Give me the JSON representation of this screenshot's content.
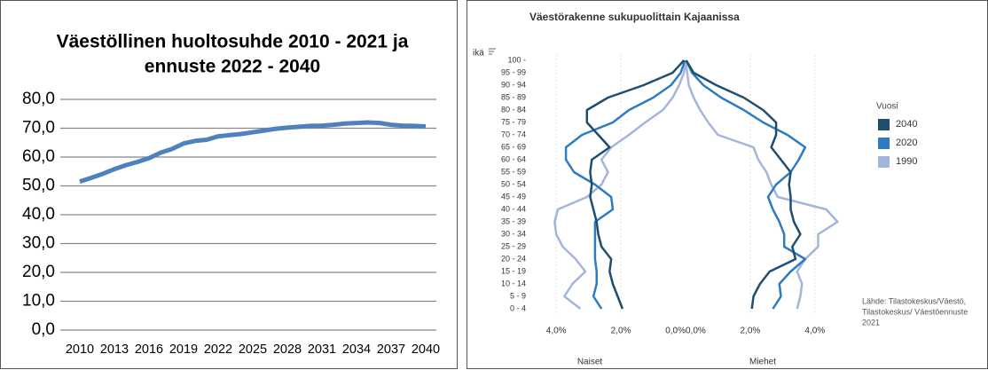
{
  "chart_data": [
    {
      "type": "line",
      "title": [
        "Väestöllinen huoltosuhde 2010 - 2021 ja",
        "ennuste 2022 - 2040"
      ],
      "x": [
        2010,
        2011,
        2012,
        2013,
        2014,
        2015,
        2016,
        2017,
        2018,
        2019,
        2020,
        2021,
        2022,
        2023,
        2024,
        2025,
        2026,
        2027,
        2028,
        2029,
        2030,
        2031,
        2032,
        2033,
        2034,
        2035,
        2036,
        2037,
        2038,
        2039,
        2040
      ],
      "values": [
        51.5,
        52.8,
        54.2,
        55.8,
        57.2,
        58.3,
        59.6,
        61.5,
        62.8,
        64.7,
        65.6,
        66.0,
        67.2,
        67.6,
        68.0,
        68.6,
        69.2,
        69.8,
        70.2,
        70.5,
        70.8,
        70.9,
        71.2,
        71.6,
        71.8,
        72.0,
        71.8,
        71.2,
        70.9,
        70.8,
        70.6
      ],
      "color": "#4f81bd",
      "xlim": [
        2010,
        2040
      ],
      "xticks": [
        2010,
        2013,
        2016,
        2019,
        2022,
        2025,
        2028,
        2031,
        2034,
        2037,
        2040
      ],
      "ylim": [
        0,
        80
      ],
      "yticks": [
        {
          "value": 0,
          "label": "0,0"
        },
        {
          "value": 10,
          "label": "10,0"
        },
        {
          "value": 20,
          "label": "20,0"
        },
        {
          "value": 30,
          "label": "30,0"
        },
        {
          "value": 40,
          "label": "40,0"
        },
        {
          "value": 50,
          "label": "50,0"
        },
        {
          "value": 60,
          "label": "60,0"
        },
        {
          "value": 70,
          "label": "70,0"
        },
        {
          "value": 80,
          "label": "80,0"
        }
      ],
      "grid": true
    },
    {
      "type": "pyramid",
      "title": "Väestörakenne sukupuolittain Kajaanissa",
      "y_label": "ikä",
      "categories": [
        "0 - 4",
        "5 - 9",
        "10 - 14",
        "15 - 19",
        "20 - 24",
        "25 - 29",
        "30 - 34",
        "35 - 39",
        "40 - 44",
        "45 - 49",
        "50 - 54",
        "55 - 59",
        "60 - 64",
        "65 - 69",
        "70 - 74",
        "75 - 79",
        "80 - 84",
        "85 - 89",
        "90 - 94",
        "95 - 99",
        "100 -"
      ],
      "left_label": "Naiset",
      "right_label": "Miehet",
      "legend_title": "Vuosi",
      "source": [
        "Lähde: Tilastokeskus/Väestö,",
        "Tilastokeskus/ Väestöennuste",
        "2021"
      ],
      "xlim": [
        0,
        4.8
      ],
      "left_xticks": [
        {
          "value": 4,
          "label": "4,0%"
        },
        {
          "value": 2,
          "label": "2,0%"
        },
        {
          "value": 0,
          "label": "0,0%"
        }
      ],
      "right_xticks": [
        {
          "value": 0,
          "label": "0,0%"
        },
        {
          "value": 2,
          "label": "2,0%"
        },
        {
          "value": 4,
          "label": "4,0%"
        }
      ],
      "series": [
        {
          "name": "2040",
          "color": "#1f4e6e",
          "women": [
            1.95,
            2.1,
            2.25,
            2.35,
            2.3,
            2.6,
            2.7,
            2.75,
            2.85,
            2.95,
            2.9,
            2.95,
            2.9,
            2.35,
            2.7,
            3.05,
            3.05,
            2.4,
            1.3,
            0.4,
            0.05
          ],
          "men": [
            2.05,
            2.1,
            2.3,
            2.6,
            3.4,
            3.3,
            3.55,
            3.35,
            3.25,
            3.25,
            3.2,
            3.25,
            2.95,
            2.65,
            2.8,
            2.8,
            2.4,
            1.8,
            0.95,
            0.25,
            0.02
          ]
        },
        {
          "name": "2020",
          "color": "#2e7bbf",
          "women": [
            2.6,
            2.85,
            2.75,
            2.75,
            2.8,
            2.8,
            2.8,
            2.8,
            2.25,
            2.3,
            2.8,
            3.45,
            3.7,
            3.7,
            3.2,
            2.25,
            1.75,
            1.0,
            0.45,
            0.15,
            0.02
          ],
          "men": [
            2.7,
            2.95,
            2.9,
            3.25,
            3.7,
            3.05,
            3.05,
            2.9,
            2.7,
            2.55,
            2.8,
            3.25,
            3.5,
            3.7,
            3.15,
            2.4,
            1.8,
            1.1,
            0.55,
            0.2,
            0.02
          ]
        },
        {
          "name": "1990",
          "color": "#a3b6da",
          "women": [
            3.25,
            3.75,
            3.5,
            3.1,
            3.4,
            3.8,
            4.0,
            4.05,
            3.95,
            3.05,
            2.6,
            2.4,
            2.6,
            2.3,
            1.75,
            1.25,
            0.7,
            0.4,
            0.2,
            0.05,
            0.0
          ],
          "men": [
            3.45,
            3.55,
            3.6,
            3.45,
            3.7,
            4.1,
            4.1,
            4.7,
            4.35,
            2.85,
            2.65,
            2.5,
            2.25,
            2.1,
            1.0,
            0.7,
            0.45,
            0.25,
            0.1,
            0.05,
            0.0
          ]
        }
      ]
    }
  ]
}
